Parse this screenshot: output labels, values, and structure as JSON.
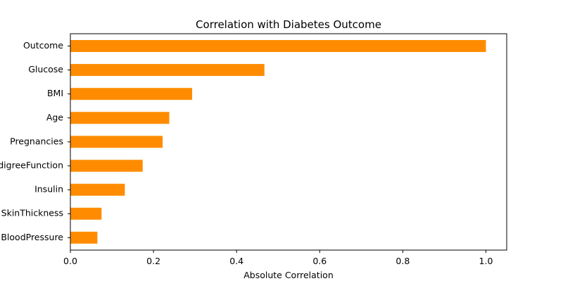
{
  "chart_data": {
    "type": "bar",
    "orientation": "horizontal",
    "title": "Correlation with Diabetes Outcome",
    "xlabel": "Absolute Correlation",
    "ylabel": "",
    "xlim": [
      0,
      1.05
    ],
    "xticks": [
      0.0,
      0.2,
      0.4,
      0.6,
      0.8,
      1.0
    ],
    "xtick_labels": [
      "0.0",
      "0.2",
      "0.4",
      "0.6",
      "0.8",
      "1.0"
    ],
    "categories": [
      "Outcome",
      "Glucose",
      "BMI",
      "Age",
      "Pregnancies",
      "DiabetesPedigreeFunction",
      "Insulin",
      "SkinThickness",
      "BloodPressure"
    ],
    "values": [
      1.0,
      0.467,
      0.293,
      0.238,
      0.222,
      0.174,
      0.131,
      0.075,
      0.065
    ],
    "bar_color": "#ff8c00",
    "grid": false,
    "legend": "none"
  }
}
